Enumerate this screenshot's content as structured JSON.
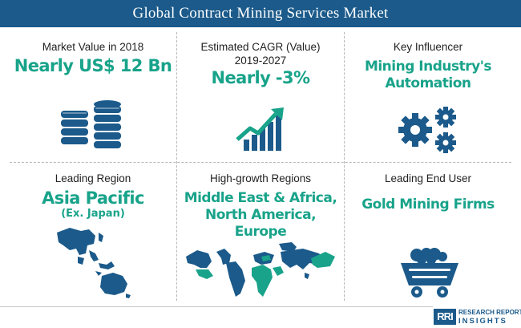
{
  "header": {
    "title": "Global Contract Mining Services Market"
  },
  "cells": {
    "market_value": {
      "label": "Market Value in 2018",
      "value": "Nearly US$ 12 Bn",
      "icon": "coin-stack-icon"
    },
    "cagr": {
      "label_line1": "Estimated CAGR (Value)",
      "label_line2": "2019-2027",
      "value": "Nearly -3%",
      "icon": "growth-chart-icon"
    },
    "key_influencer": {
      "label": "Key Influencer",
      "value_line1": "Mining Industry's",
      "value_line2": "Automation",
      "icon": "gears-icon"
    },
    "leading_region": {
      "label": "Leading Region",
      "value": "Asia Pacific",
      "sub": "(Ex. Japan)",
      "icon": "asia-pacific-map-icon"
    },
    "high_growth": {
      "label": "High-growth Regions",
      "value_line1": "Middle East & Africa,",
      "value_line2": "North America,",
      "value_line3": "Europe",
      "icon": "world-map-icon"
    },
    "end_user": {
      "label": "Leading End User",
      "value": "Gold Mining Firms",
      "icon": "mine-cart-icon"
    }
  },
  "footer": {
    "logo_mark": "RRI",
    "logo_line1": "RESEARCH REPORT",
    "logo_line2": "INSIGHTS"
  },
  "colors": {
    "banner": "#1b5a8a",
    "accent": "#18a38a",
    "icon": "#1b5a8a"
  }
}
